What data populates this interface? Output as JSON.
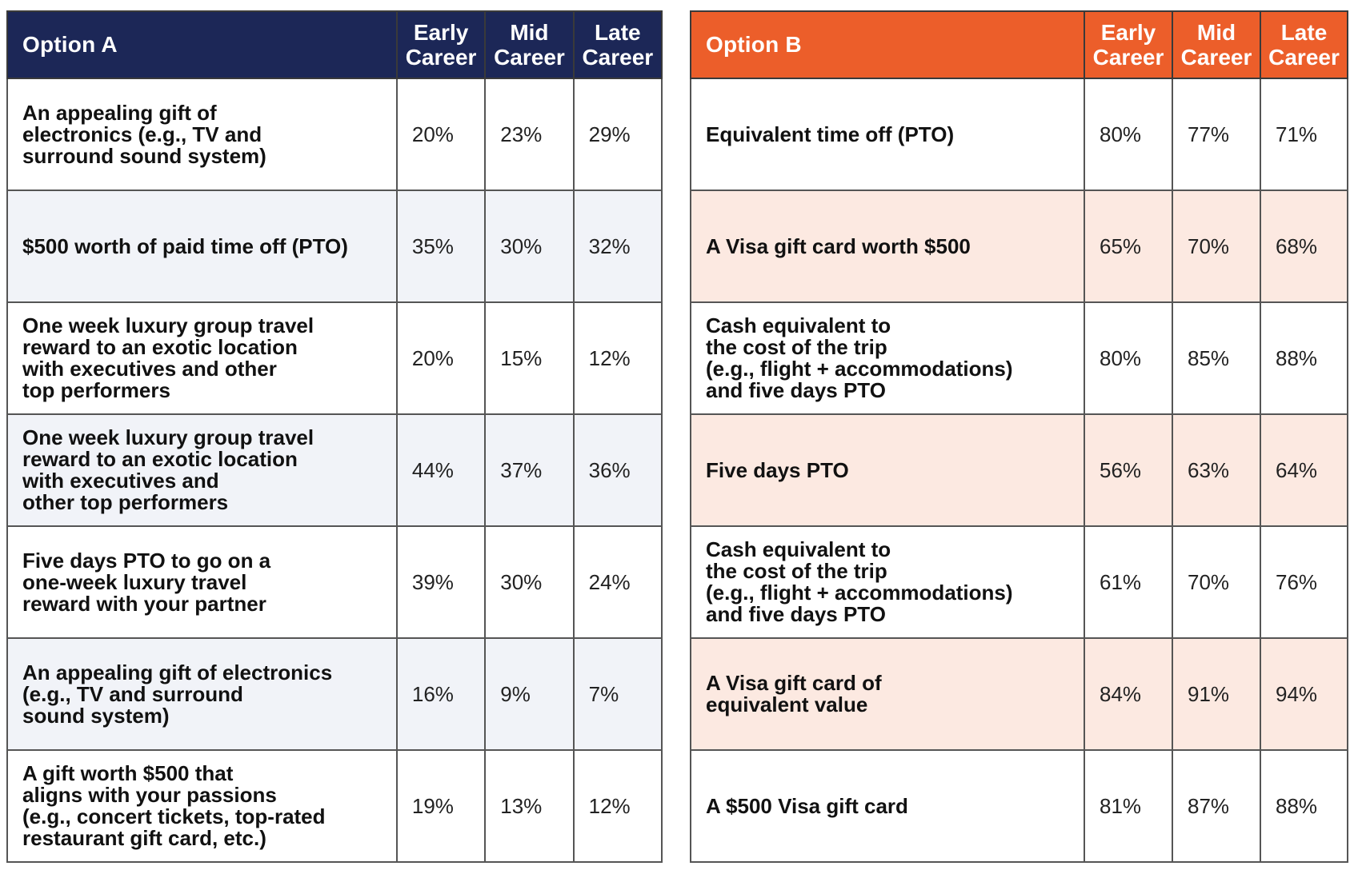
{
  "colors": {
    "option_a_header": "#1c2757",
    "option_b_header": "#ec5e2a",
    "option_a_stripe": "#f1f3f8",
    "option_b_stripe": "#fce9e1"
  },
  "option_a": {
    "title": "Option A",
    "columns": [
      "Early\nCareer",
      "Mid\nCareer",
      "Late\nCareer"
    ],
    "rows": [
      {
        "label": "An appealing gift of\nelectronics (e.g., TV and\nsurround sound system)",
        "values": [
          "20%",
          "23%",
          "29%"
        ]
      },
      {
        "label": "$500 worth of paid time off (PTO)",
        "values": [
          "35%",
          "30%",
          "32%"
        ]
      },
      {
        "label": "One week luxury group travel\nreward to an exotic location\nwith executives and other\ntop performers",
        "values": [
          "20%",
          "15%",
          "12%"
        ]
      },
      {
        "label": "One week luxury group travel\nreward to an exotic location\nwith executives and\nother top performers",
        "values": [
          "44%",
          "37%",
          "36%"
        ]
      },
      {
        "label": "Five days PTO to go on a\none-week luxury travel\nreward with your partner",
        "values": [
          "39%",
          "30%",
          "24%"
        ]
      },
      {
        "label": "An appealing gift of electronics\n(e.g., TV and surround\nsound system)",
        "values": [
          "16%",
          "9%",
          "7%"
        ]
      },
      {
        "label": "A gift worth $500 that\naligns with your passions\n(e.g., concert tickets, top-rated\nrestaurant gift card, etc.)",
        "values": [
          "19%",
          "13%",
          "12%"
        ]
      }
    ]
  },
  "option_b": {
    "title": "Option B",
    "columns": [
      "Early\nCareer",
      "Mid\nCareer",
      "Late\nCareer"
    ],
    "rows": [
      {
        "label": "Equivalent time off (PTO)",
        "values": [
          "80%",
          "77%",
          "71%"
        ]
      },
      {
        "label": "A Visa gift card worth $500",
        "values": [
          "65%",
          "70%",
          "68%"
        ]
      },
      {
        "label": "Cash equivalent to\nthe cost of the trip\n(e.g., flight + accommodations)\nand five days PTO",
        "values": [
          "80%",
          "85%",
          "88%"
        ]
      },
      {
        "label": "Five days PTO",
        "values": [
          "56%",
          "63%",
          "64%"
        ]
      },
      {
        "label": "Cash equivalent to\nthe cost of the trip\n(e.g., flight + accommodations)\nand five days PTO",
        "values": [
          "61%",
          "70%",
          "76%"
        ]
      },
      {
        "label": "A Visa gift card of\nequivalent value",
        "values": [
          "84%",
          "91%",
          "94%"
        ]
      },
      {
        "label": "A $500 Visa gift card",
        "values": [
          "81%",
          "87%",
          "88%"
        ]
      }
    ]
  }
}
